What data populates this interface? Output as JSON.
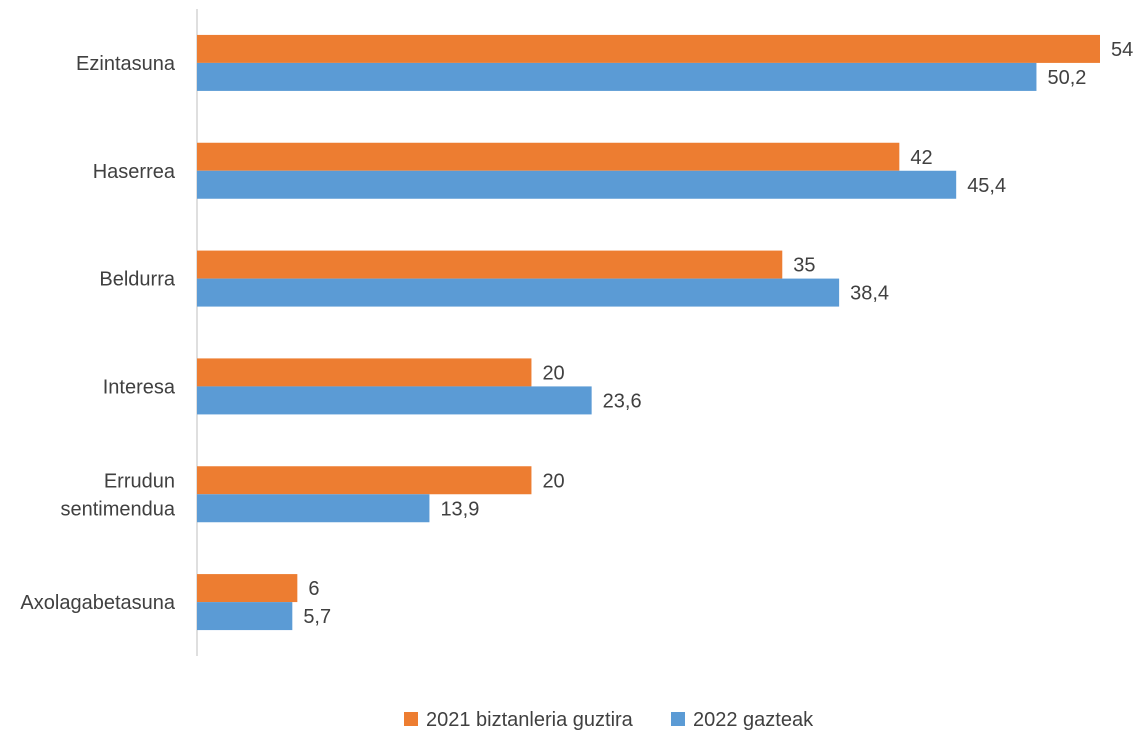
{
  "chart_data": {
    "type": "bar",
    "orientation": "horizontal",
    "categories": [
      [
        "Ezintasuna"
      ],
      [
        "Haserrea"
      ],
      [
        "Beldurra"
      ],
      [
        "Interesa"
      ],
      [
        "Errudun",
        "sentimendua"
      ],
      [
        "Axolagabetasuna"
      ]
    ],
    "series": [
      {
        "name": "2021 biztanleria guztira",
        "color": "#ED7D31",
        "values": [
          54,
          42,
          35,
          20,
          20,
          6
        ],
        "labels": [
          "54",
          "42",
          "35",
          "20",
          "20",
          "6"
        ]
      },
      {
        "name": "2022 gazteak",
        "color": "#5B9BD5",
        "values": [
          50.2,
          45.4,
          38.4,
          23.6,
          13.9,
          5.7
        ],
        "labels": [
          "50,2",
          "45,4",
          "38,4",
          "23,6",
          "13,9",
          "5,7"
        ]
      }
    ],
    "xlim": [
      0,
      54
    ],
    "grid": false,
    "legend_position": "bottom",
    "axis_color": "#BFBFBF"
  }
}
